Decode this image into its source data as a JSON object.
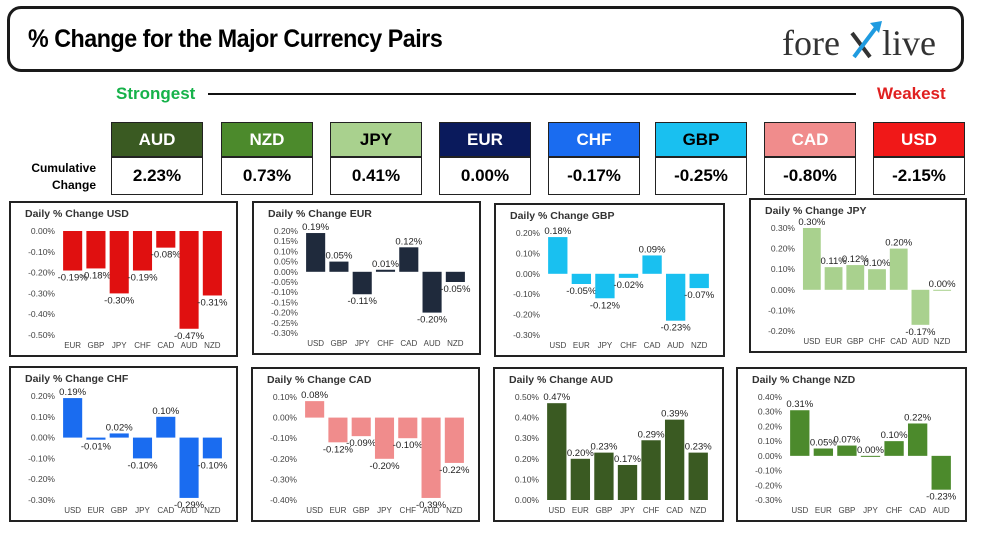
{
  "header": {
    "title": "% Change for the Major Currency Pairs",
    "logo_text_left": "fore",
    "logo_text_right": "live"
  },
  "labels": {
    "strongest": "Strongest",
    "weakest": "Weakest",
    "cumulative": "Cumulative Change"
  },
  "currencies": [
    {
      "code": "AUD",
      "change": "2.23%",
      "color": "#3a5a22",
      "text_color": "#ffffff"
    },
    {
      "code": "NZD",
      "change": "0.73%",
      "color": "#4c8a2c",
      "text_color": "#ffffff"
    },
    {
      "code": "JPY",
      "change": "0.41%",
      "color": "#a9d18e",
      "text_color": "#000000"
    },
    {
      "code": "EUR",
      "change": "0.00%",
      "color": "#0a1a5c",
      "text_color": "#ffffff"
    },
    {
      "code": "CHF",
      "change": "-0.17%",
      "color": "#1a6cf0",
      "text_color": "#ffffff"
    },
    {
      "code": "GBP",
      "change": "-0.25%",
      "color": "#19c0f0",
      "text_color": "#000000"
    },
    {
      "code": "CAD",
      "change": "-0.80%",
      "color": "#f08c8c",
      "text_color": "#ffffff"
    },
    {
      "code": "USD",
      "change": "-2.15%",
      "color": "#f01818",
      "text_color": "#ffffff"
    }
  ],
  "chart_data": [
    {
      "type": "bar",
      "title": "Daily % Change USD",
      "color": "#e01010",
      "categories": [
        "EUR",
        "GBP",
        "JPY",
        "CHF",
        "CAD",
        "AUD",
        "NZD"
      ],
      "values": [
        -0.19,
        -0.18,
        -0.3,
        -0.19,
        -0.08,
        -0.47,
        -0.31
      ],
      "labels": [
        "-0.19%",
        "-0.18%",
        "-0.30%",
        "-0.19%",
        "-0.08%",
        "-0.47%",
        "-0.31%"
      ],
      "yticks": [
        "0.00%",
        "-0.10%",
        "-0.20%",
        "-0.30%",
        "-0.40%",
        "-0.50%"
      ],
      "ylim": [
        -0.5,
        0
      ]
    },
    {
      "type": "bar",
      "title": "Daily % Change EUR",
      "color": "#1f2a3c",
      "categories": [
        "USD",
        "GBP",
        "JPY",
        "CHF",
        "CAD",
        "AUD",
        "NZD"
      ],
      "values": [
        0.19,
        0.05,
        -0.11,
        0.01,
        0.12,
        -0.2,
        -0.05
      ],
      "labels": [
        "0.19%",
        "0.05%",
        "-0.11%",
        "0.01%",
        "0.12%",
        "-0.20%",
        "-0.05%"
      ],
      "yticks": [
        "0.20%",
        "0.15%",
        "0.10%",
        "0.05%",
        "0.00%",
        "-0.05%",
        "-0.10%",
        "-0.15%",
        "-0.20%",
        "-0.25%",
        "-0.30%"
      ],
      "ylim": [
        -0.3,
        0.2
      ]
    },
    {
      "type": "bar",
      "title": "Daily % Change GBP",
      "color": "#19c0f0",
      "categories": [
        "USD",
        "EUR",
        "JPY",
        "CHF",
        "CAD",
        "AUD",
        "NZD"
      ],
      "values": [
        0.18,
        -0.05,
        -0.12,
        -0.02,
        0.09,
        -0.23,
        -0.07
      ],
      "labels": [
        "0.18%",
        "-0.05%",
        "-0.12%",
        "-0.02%",
        "0.09%",
        "-0.23%",
        "-0.07%"
      ],
      "yticks": [
        "0.20%",
        "0.10%",
        "0.00%",
        "-0.10%",
        "-0.20%",
        "-0.30%"
      ],
      "ylim": [
        -0.3,
        0.2
      ]
    },
    {
      "type": "bar",
      "title": "Daily % Change JPY",
      "color": "#a9d18e",
      "categories": [
        "USD",
        "EUR",
        "GBP",
        "CHF",
        "CAD",
        "AUD",
        "NZD"
      ],
      "values": [
        0.3,
        0.11,
        0.12,
        0.1,
        0.2,
        -0.17,
        0.0
      ],
      "labels": [
        "0.30%",
        "0.11%",
        "0.12%",
        "0.10%",
        "0.20%",
        "-0.17%",
        "0.00%"
      ],
      "yticks": [
        "0.30%",
        "0.20%",
        "0.10%",
        "0.00%",
        "-0.10%",
        "-0.20%"
      ],
      "ylim": [
        -0.2,
        0.3
      ]
    },
    {
      "type": "bar",
      "title": "Daily % Change CHF",
      "color": "#1a6cf0",
      "categories": [
        "USD",
        "EUR",
        "GBP",
        "JPY",
        "CAD",
        "AUD",
        "NZD"
      ],
      "values": [
        0.19,
        -0.01,
        0.02,
        -0.1,
        0.1,
        -0.29,
        -0.1
      ],
      "labels": [
        "0.19%",
        "-0.01%",
        "0.02%",
        "-0.10%",
        "0.10%",
        "-0.29%",
        "-0.10%"
      ],
      "yticks": [
        "0.20%",
        "0.10%",
        "0.00%",
        "-0.10%",
        "-0.20%",
        "-0.30%"
      ],
      "ylim": [
        -0.3,
        0.2
      ]
    },
    {
      "type": "bar",
      "title": "Daily % Change CAD",
      "color": "#f08c8c",
      "categories": [
        "USD",
        "EUR",
        "GBP",
        "JPY",
        "CHF",
        "AUD",
        "NZD"
      ],
      "values": [
        0.08,
        -0.12,
        -0.09,
        -0.2,
        -0.1,
        -0.39,
        -0.22
      ],
      "labels": [
        "0.08%",
        "-0.12%",
        "-0.09%",
        "-0.20%",
        "-0.10%",
        "-0.39%",
        "-0.22%"
      ],
      "yticks": [
        "0.10%",
        "0.00%",
        "-0.10%",
        "-0.20%",
        "-0.30%",
        "-0.40%"
      ],
      "ylim": [
        -0.4,
        0.1
      ]
    },
    {
      "type": "bar",
      "title": "Daily % Change AUD",
      "color": "#3a5a22",
      "categories": [
        "USD",
        "EUR",
        "GBP",
        "JPY",
        "CHF",
        "CAD",
        "NZD"
      ],
      "values": [
        0.47,
        0.2,
        0.23,
        0.17,
        0.29,
        0.39,
        0.23
      ],
      "labels": [
        "0.47%",
        "0.20%",
        "0.23%",
        "0.17%",
        "0.29%",
        "0.39%",
        "0.23%"
      ],
      "yticks": [
        "0.50%",
        "0.40%",
        "0.30%",
        "0.20%",
        "0.10%",
        "0.00%"
      ],
      "ylim": [
        0,
        0.5
      ]
    },
    {
      "type": "bar",
      "title": "Daily % Change NZD",
      "color": "#4c8a2c",
      "categories": [
        "USD",
        "EUR",
        "GBP",
        "JPY",
        "CHF",
        "CAD",
        "AUD"
      ],
      "values": [
        0.31,
        0.05,
        0.07,
        0.0,
        0.1,
        0.22,
        -0.23
      ],
      "labels": [
        "0.31%",
        "0.05%",
        "0.07%",
        "0.00%",
        "0.10%",
        "0.22%",
        "-0.23%"
      ],
      "yticks": [
        "0.40%",
        "0.30%",
        "0.20%",
        "0.10%",
        "0.00%",
        "-0.10%",
        "-0.20%",
        "-0.30%"
      ],
      "ylim": [
        -0.3,
        0.4
      ]
    }
  ]
}
